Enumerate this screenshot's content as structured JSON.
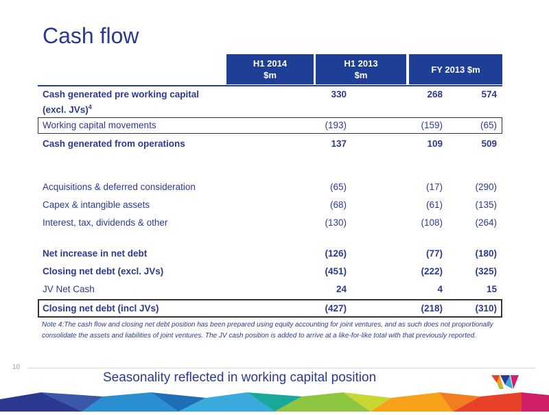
{
  "title": "Cash flow",
  "columns": [
    {
      "line1": "H1 2014",
      "line2": "$m"
    },
    {
      "line1": "H1 2013",
      "line2": "$m"
    },
    {
      "line1": "FY 2013 $m",
      "line2": ""
    }
  ],
  "rows": [
    {
      "label": "Cash generated pre working capital",
      "label2": "(excl. JVs)",
      "sup": "4",
      "v1": "330",
      "v2": "268",
      "v3": "574"
    },
    {
      "label": "Working capital movements",
      "v1": "(193)",
      "v2": "(159)",
      "v3": "(65)"
    },
    {
      "label": "Cash generated from operations",
      "v1": "137",
      "v2": "109",
      "v3": "509"
    },
    {
      "label": "Acquisitions & deferred consideration",
      "v1": "(65)",
      "v2": "(17)",
      "v3": "(290)"
    },
    {
      "label": "Capex & intangible assets",
      "v1": "(68)",
      "v2": "(61)",
      "v3": "(135)"
    },
    {
      "label": "Interest, tax, dividends & other",
      "v1": "(130)",
      "v2": "(108)",
      "v3": "(264)"
    },
    {
      "label": "Net increase in net debt",
      "v1": "(126)",
      "v2": "(77)",
      "v3": "(180)"
    },
    {
      "label": "Closing net debt (excl. JVs)",
      "v1": "(451)",
      "v2": "(222)",
      "v3": "(325)"
    },
    {
      "label": "JV Net Cash",
      "v1": "24",
      "v2": "4",
      "v3": "15"
    },
    {
      "label": "Closing net debt (incl JVs)",
      "v1": "(427)",
      "v2": "(218)",
      "v3": "(310)"
    }
  ],
  "note": "Note 4:The cash flow and closing net debt position has been prepared using equity accounting for joint ventures, and as such does not proportionally consolidate the assets and liabilities of joint ventures.   The JV cash position is added to arrive at a like-for-like total with that previously reported.",
  "page_number": "10",
  "subtitle": "Seasonality reflected in working capital position",
  "logo_icon": "w-logo-icon",
  "colors": {
    "header_bg": "#1f3f97",
    "text": "#2b3990"
  }
}
